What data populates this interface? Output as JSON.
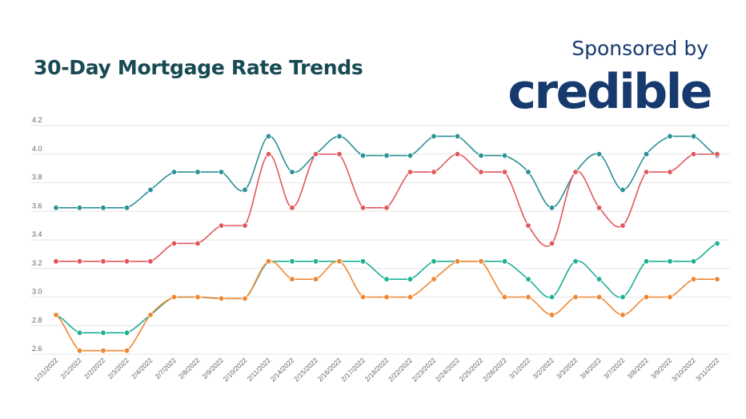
{
  "header": {
    "title": "30-Day Mortgage Rate Trends",
    "sponsor_label": "Sponsored by",
    "sponsor_logo": "credible"
  },
  "colors": {
    "title": "#174a53",
    "sponsor": "#173a6e",
    "grid": "#e6e6e6"
  },
  "chart_data": {
    "type": "line",
    "title": "30-Day Mortgage Rate Trends",
    "xlabel": "",
    "ylabel": "",
    "ylim": [
      2.6,
      4.2
    ],
    "yticks": [
      2.6,
      2.8,
      3.0,
      3.2,
      3.4,
      3.6,
      3.8,
      4.0,
      4.2
    ],
    "ytick_labels": [
      "2.6",
      "2.8",
      "3.0",
      "3.2",
      "3.4",
      "3.6",
      "3.8",
      "4.0",
      "4.2"
    ],
    "grid": true,
    "smooth": true,
    "markers": true,
    "categories": [
      "1/31/2022",
      "2/1/2022",
      "2/2/2022",
      "2/3/2022",
      "2/4/2022",
      "2/7/2022",
      "2/8/2022",
      "2/9/2022",
      "2/10/2022",
      "2/11/2022",
      "2/14/2022",
      "2/15/2022",
      "2/16/2022",
      "2/17/2022",
      "2/18/2022",
      "2/22/2022",
      "2/23/2022",
      "2/24/2022",
      "2/25/2022",
      "2/28/2022",
      "3/1/2022",
      "3/2/2022",
      "3/3/2022",
      "3/4/2022",
      "3/7/2022",
      "3/8/2022",
      "3/9/2022",
      "3/10/2022",
      "3/11/2022"
    ],
    "series": [
      {
        "color": "#2a9196",
        "values": [
          3.625,
          3.625,
          3.625,
          3.625,
          3.75,
          3.875,
          3.875,
          3.875,
          3.75,
          4.125,
          3.875,
          4.0,
          4.125,
          3.99,
          3.99,
          3.99,
          4.125,
          4.125,
          3.99,
          3.99,
          3.875,
          3.625,
          3.875,
          4.0,
          3.75,
          4.0,
          4.125,
          4.125,
          3.99
        ]
      },
      {
        "color": "#e0575d",
        "values": [
          3.25,
          3.25,
          3.25,
          3.25,
          3.25,
          3.375,
          3.375,
          3.5,
          3.5,
          4.0,
          3.625,
          4.0,
          4.0,
          3.625,
          3.625,
          3.875,
          3.875,
          4.0,
          3.875,
          3.875,
          3.5,
          3.375,
          3.875,
          3.625,
          3.5,
          3.875,
          3.875,
          4.0,
          4.0
        ]
      },
      {
        "color": "#1fb096",
        "values": [
          2.875,
          2.75,
          2.75,
          2.75,
          2.875,
          3.0,
          3.0,
          2.99,
          2.99,
          3.25,
          3.25,
          3.25,
          3.25,
          3.25,
          3.125,
          3.125,
          3.25,
          3.25,
          3.25,
          3.25,
          3.125,
          3.0,
          3.25,
          3.125,
          3.0,
          3.25,
          3.25,
          3.25,
          3.375
        ]
      },
      {
        "color": "#ef8630",
        "values": [
          2.875,
          2.625,
          2.625,
          2.625,
          2.875,
          3.0,
          3.0,
          2.99,
          2.99,
          3.25,
          3.125,
          3.125,
          3.25,
          3.0,
          3.0,
          3.0,
          3.125,
          3.25,
          3.25,
          3.0,
          3.0,
          2.875,
          3.0,
          3.0,
          2.875,
          3.0,
          3.0,
          3.125,
          3.125
        ]
      }
    ]
  }
}
